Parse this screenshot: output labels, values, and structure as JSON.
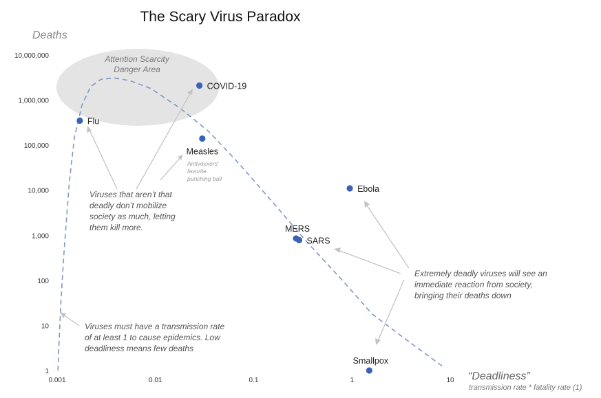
{
  "chart_data": {
    "type": "scatter",
    "title": "The Scary Virus Paradox",
    "ylabel": "Deaths",
    "xlabel": "“Deadliness”",
    "xlabel_sub": "transmission rate * fatality rate (1)",
    "x_scale": "log",
    "y_scale": "log",
    "xlim": [
      0.001,
      10
    ],
    "ylim": [
      1,
      10000000
    ],
    "x_ticks": [
      {
        "value": 0.001,
        "label": "0.001"
      },
      {
        "value": 0.01,
        "label": "0.01"
      },
      {
        "value": 0.1,
        "label": "0.1"
      },
      {
        "value": 1,
        "label": "1"
      },
      {
        "value": 10,
        "label": "10"
      }
    ],
    "y_ticks": [
      {
        "value": 1,
        "label": "1"
      },
      {
        "value": 10,
        "label": "10"
      },
      {
        "value": 100,
        "label": "100"
      },
      {
        "value": 1000,
        "label": "1,000"
      },
      {
        "value": 10000,
        "label": "10,000"
      },
      {
        "value": 100000,
        "label": "100,000"
      },
      {
        "value": 1000000,
        "label": "1,000,000"
      },
      {
        "value": 10000000,
        "label": "10,000,000"
      }
    ],
    "grid": false,
    "point_color": "#3a63b8",
    "curve_color": "#7f97c2",
    "zone_color": "#e4e4e4",
    "points": [
      {
        "name": "Flu",
        "x": 0.0017,
        "y": 350000,
        "label_pos": "right"
      },
      {
        "name": "COVID-19",
        "x": 0.028,
        "y": 2100000,
        "label_pos": "right"
      },
      {
        "name": "Measles",
        "x": 0.03,
        "y": 140000,
        "label_pos": "below"
      },
      {
        "name": "Ebola",
        "x": 0.95,
        "y": 11000,
        "label_pos": "right"
      },
      {
        "name": "MERS",
        "x": 0.27,
        "y": 850,
        "label_pos": "above"
      },
      {
        "name": "SARS",
        "x": 0.29,
        "y": 780,
        "label_pos": "right"
      },
      {
        "name": "Smallpox",
        "x": 1.5,
        "y": 1,
        "label_pos": "above"
      }
    ],
    "curve": [
      {
        "x": 0.00102,
        "y": 1
      },
      {
        "x": 0.00105,
        "y": 5
      },
      {
        "x": 0.00109,
        "y": 30
      },
      {
        "x": 0.00118,
        "y": 500
      },
      {
        "x": 0.00133,
        "y": 15000
      },
      {
        "x": 0.0015,
        "y": 150000
      },
      {
        "x": 0.0018,
        "y": 800000
      },
      {
        "x": 0.0022,
        "y": 2000000
      },
      {
        "x": 0.0028,
        "y": 2900000
      },
      {
        "x": 0.0038,
        "y": 3100000
      },
      {
        "x": 0.0055,
        "y": 2700000
      },
      {
        "x": 0.009,
        "y": 1800000
      },
      {
        "x": 0.018,
        "y": 650000
      },
      {
        "x": 0.035,
        "y": 200000
      },
      {
        "x": 0.07,
        "y": 40000
      },
      {
        "x": 0.15,
        "y": 6000
      },
      {
        "x": 0.35,
        "y": 700
      },
      {
        "x": 0.8,
        "y": 100
      },
      {
        "x": 1.6,
        "y": 18
      },
      {
        "x": 3.5,
        "y": 5
      },
      {
        "x": 8.5,
        "y": 1.2
      }
    ],
    "zone": {
      "label_line1": "Attention Scarcity",
      "label_line2": "Danger Area"
    },
    "annotations": [
      {
        "id": "low-deadliness",
        "lines": [
          "Viruses that aren’t that",
          "deadly don’t mobilize",
          "society as much, letting",
          "them kill more."
        ]
      },
      {
        "id": "high-deadliness",
        "lines": [
          "Extremely deadly viruses will see an",
          "immediate reaction from society,",
          "bringing their deaths down"
        ]
      },
      {
        "id": "epidemic-threshold",
        "lines": [
          "Viruses must have a transmission rate",
          "of at least 1 to cause epidemics. Low",
          "deadliness means few deaths"
        ]
      },
      {
        "id": "measles-note",
        "lines": [
          "Antivaxxers’",
          "favorite",
          "punching ball"
        ]
      }
    ]
  }
}
